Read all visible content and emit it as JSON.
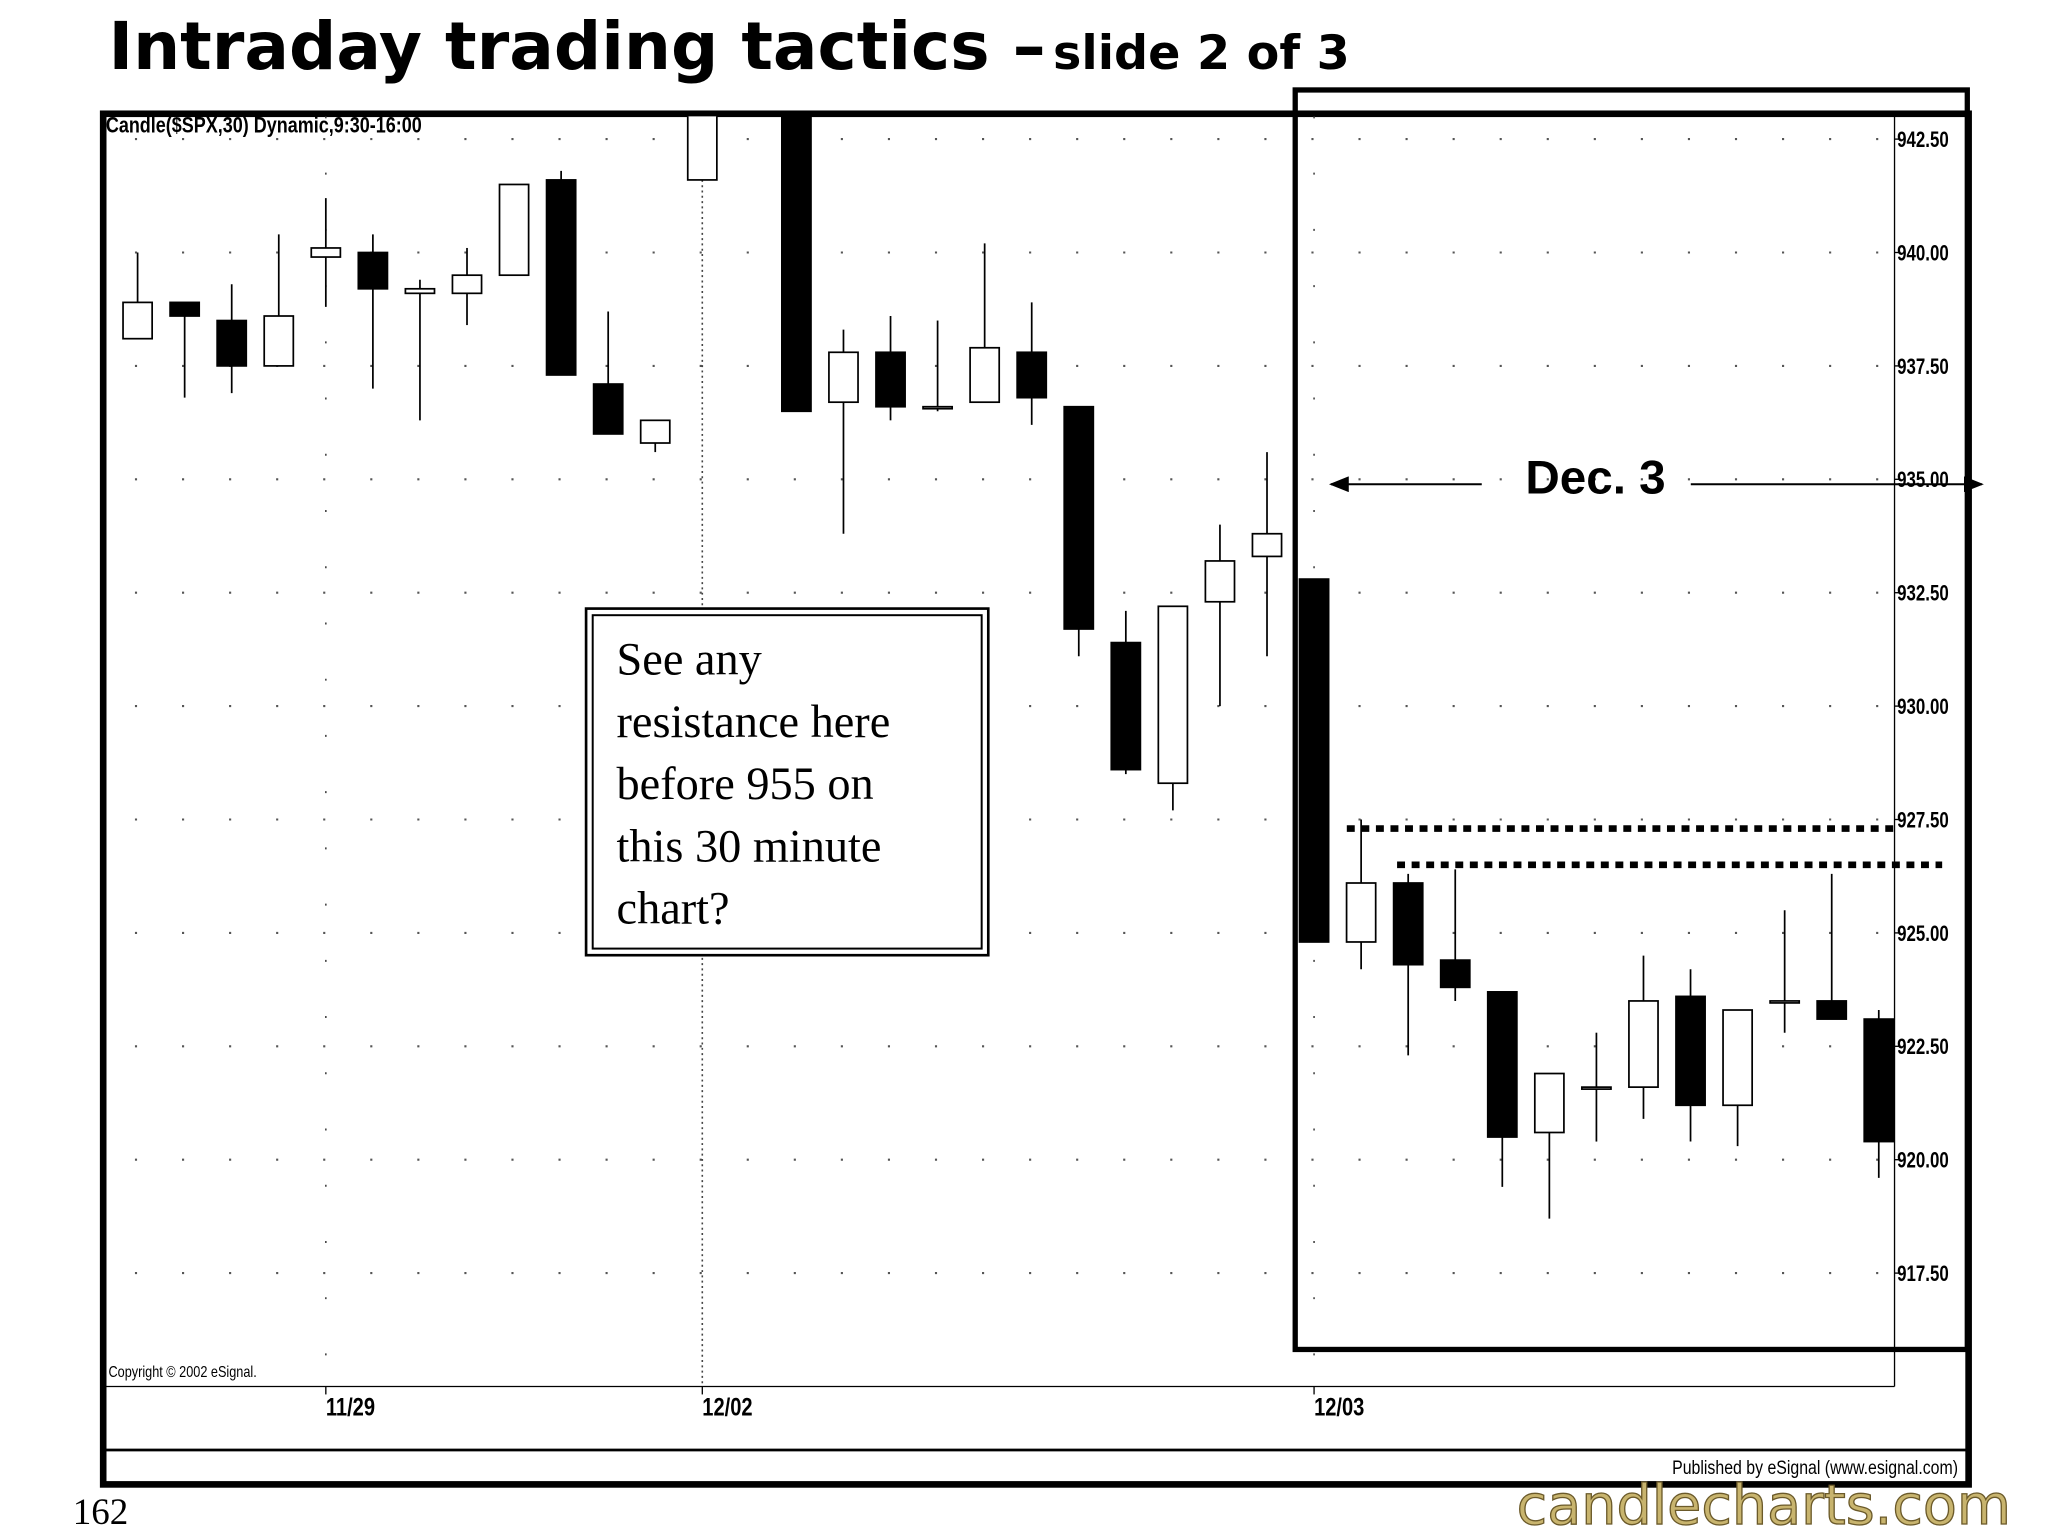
{
  "page": {
    "title": "Intraday trading tactics –",
    "subtitle": "slide 2 of 3",
    "page_number": "162",
    "logo": "candlecharts.com"
  },
  "chart_data": {
    "type": "candlestick",
    "header": "Candle($SPX,30) Dynamic,9:30-16:00",
    "copyright": "Copyright © 2002 eSignal.",
    "publisher": "Published by eSignal (www.esignal.com)",
    "annotation": "Dec. 3",
    "callout": [
      "See any",
      "resistance here",
      "before 955 on",
      "this 30 minute",
      "chart?"
    ],
    "categories": [
      null,
      null,
      null,
      null,
      "11/29",
      null,
      null,
      null,
      null,
      null,
      null,
      null,
      "12/02",
      null,
      null,
      null,
      null,
      null,
      null,
      null,
      null,
      null,
      null,
      null,
      null,
      "12/03",
      null,
      null,
      null,
      null,
      null,
      null,
      null,
      null,
      null,
      null,
      null,
      null
    ],
    "open": [
      938.1,
      938.9,
      938.5,
      937.5,
      939.9,
      940.0,
      939.1,
      939.1,
      939.5,
      941.6,
      937.1,
      935.8,
      941.6,
      null,
      944.0,
      936.7,
      937.8,
      936.6,
      936.7,
      937.8,
      936.6,
      931.4,
      928.3,
      932.3,
      933.3,
      932.8,
      924.8,
      926.1,
      924.4,
      923.7,
      920.6,
      921.6,
      921.6,
      923.6,
      921.2,
      923.5,
      923.5,
      923.1
    ],
    "high": [
      940.0,
      938.9,
      939.3,
      940.4,
      941.2,
      940.4,
      939.4,
      940.1,
      941.5,
      941.8,
      938.7,
      936.3,
      945.0,
      null,
      944.5,
      938.3,
      938.6,
      938.5,
      940.2,
      938.9,
      936.6,
      932.1,
      932.2,
      934.0,
      935.6,
      932.8,
      927.5,
      926.3,
      926.4,
      923.7,
      921.9,
      922.8,
      924.5,
      924.2,
      923.3,
      925.5,
      926.3,
      923.3
    ],
    "low": [
      938.1,
      936.8,
      936.9,
      937.5,
      938.8,
      937.0,
      936.3,
      938.4,
      939.5,
      937.3,
      936.0,
      935.6,
      941.6,
      null,
      936.5,
      933.8,
      936.3,
      936.5,
      936.7,
      936.2,
      931.1,
      928.5,
      927.7,
      930.0,
      931.1,
      924.8,
      924.2,
      922.3,
      923.5,
      919.4,
      918.7,
      920.4,
      920.9,
      920.4,
      920.3,
      922.8,
      923.1,
      919.6
    ],
    "close": [
      938.9,
      938.6,
      937.5,
      938.6,
      940.1,
      939.2,
      939.2,
      939.5,
      941.5,
      937.3,
      936.0,
      936.3,
      944.0,
      null,
      936.5,
      937.8,
      936.6,
      936.6,
      937.9,
      936.8,
      931.7,
      928.6,
      932.2,
      933.2,
      933.8,
      924.8,
      926.1,
      924.3,
      923.8,
      920.5,
      921.9,
      921.6,
      923.5,
      921.2,
      923.3,
      923.5,
      923.1,
      920.4
    ],
    "resistance_lines": [
      927.3,
      926.5
    ],
    "ylim": [
      915,
      943
    ],
    "yticks": [
      {
        "value": 942.5,
        "label": "942.50"
      },
      {
        "value": 940,
        "label": "940.00"
      },
      {
        "value": 937.5,
        "label": "937.50"
      },
      {
        "value": 935,
        "label": "935.00"
      },
      {
        "value": 932.5,
        "label": "932.50"
      },
      {
        "value": 930,
        "label": "930.00"
      },
      {
        "value": 927.5,
        "label": "927.50"
      },
      {
        "value": 925,
        "label": "925.00"
      },
      {
        "value": 922.5,
        "label": "922.50"
      },
      {
        "value": 920,
        "label": "920.00"
      },
      {
        "value": 917.5,
        "label": "917.50"
      }
    ],
    "grid": true,
    "up_color": "#ffffff",
    "down_color": "#000000"
  }
}
